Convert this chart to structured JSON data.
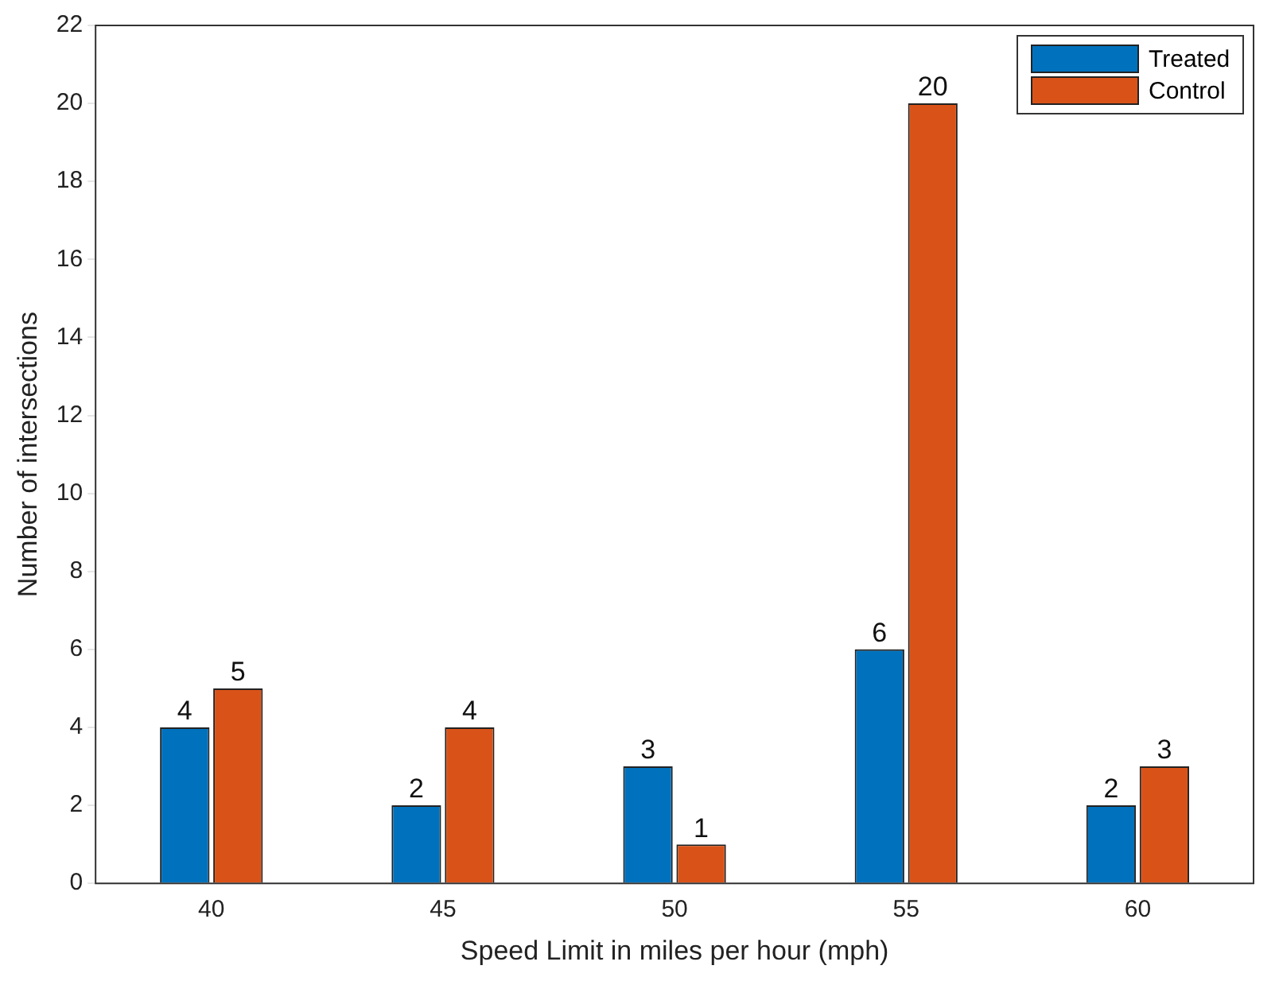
{
  "chart_data": {
    "type": "bar",
    "xlabel": "Speed Limit in miles per hour (mph)",
    "ylabel": "Number of intersections",
    "categories": [
      "40",
      "45",
      "50",
      "55",
      "60"
    ],
    "series": [
      {
        "name": "Treated",
        "color": "#0072bd",
        "values": [
          4,
          2,
          3,
          6,
          2
        ]
      },
      {
        "name": "Control",
        "color": "#d95319",
        "values": [
          5,
          4,
          1,
          20,
          3
        ]
      }
    ],
    "ylim": [
      0,
      22
    ],
    "yticks": [
      0,
      2,
      4,
      6,
      8,
      10,
      12,
      14,
      16,
      18,
      20,
      22
    ],
    "grid": false,
    "legend": "top right",
    "data_labels": true
  }
}
